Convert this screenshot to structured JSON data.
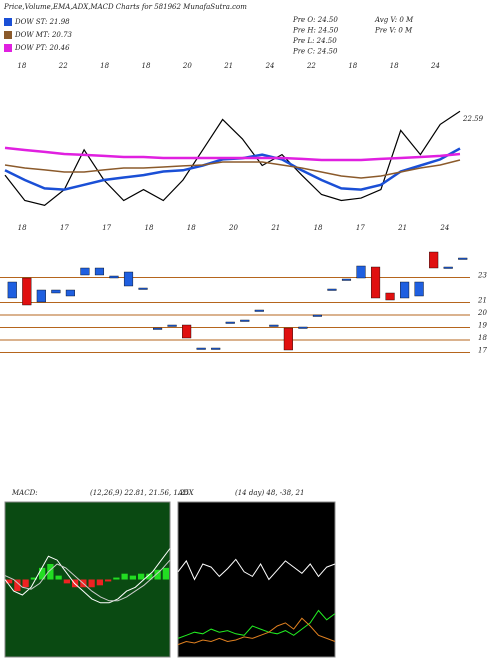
{
  "header": {
    "title": "Price,Volume,EMA,ADX,MACD Charts for 581962  MunafaSutra.com",
    "info": [
      "Pre  O: 24.50",
      "Pre  H: 24.50",
      "Pre  L: 24.50",
      "Pre  C: 24.50"
    ],
    "volume": [
      "Avg V: 0  M",
      "Pre  V: 0  M"
    ]
  },
  "chart_data": [
    {
      "type": "line",
      "ylim": [
        14,
        26
      ],
      "x_labels": [
        "18",
        "22",
        "18",
        "18",
        "20",
        "21",
        "24",
        "22",
        "18",
        "18",
        "24"
      ],
      "series": [
        {
          "color": "#000000",
          "width": 1.2,
          "values": [
            17.3,
            15.2,
            14.8,
            16.1,
            19.4,
            16.9,
            15.2,
            16.1,
            15.2,
            16.9,
            19.4,
            21.9,
            20.3,
            18.1,
            19.0,
            17.3,
            15.7,
            15.2,
            15.4,
            16.1,
            21.0,
            19.0,
            21.5,
            22.59
          ],
          "value_labels": [
            null,
            null,
            null,
            null,
            null,
            null,
            null,
            null,
            null,
            null,
            null,
            null,
            null,
            null,
            null,
            null,
            null,
            null,
            null,
            null,
            null,
            null,
            null,
            "22.59"
          ]
        },
        {
          "name": "DOW ST: 21.98",
          "color": "#1a4fd6",
          "width": 2.5,
          "values": [
            17.7,
            16.9,
            16.2,
            16.1,
            16.5,
            16.9,
            17.1,
            17.3,
            17.6,
            17.7,
            18.1,
            18.6,
            18.7,
            19.0,
            18.6,
            17.7,
            16.9,
            16.2,
            16.1,
            16.5,
            17.6,
            18.1,
            18.6,
            19.5
          ]
        },
        {
          "name": "DOW MT: 20.73",
          "color": "#8b5a2b",
          "width": 1.5,
          "values": [
            18.14,
            17.89,
            17.73,
            17.56,
            17.56,
            17.73,
            17.89,
            17.89,
            17.97,
            18.06,
            18.14,
            18.39,
            18.39,
            18.39,
            18.14,
            17.89,
            17.56,
            17.23,
            17.06,
            17.23,
            17.56,
            17.89,
            18.14,
            18.55
          ]
        },
        {
          "name": "DOW PT: 20.46",
          "color": "#e020e0",
          "width": 2.5,
          "values": [
            19.55,
            19.38,
            19.22,
            19.05,
            18.97,
            18.89,
            18.8,
            18.8,
            18.72,
            18.72,
            18.72,
            18.72,
            18.72,
            18.72,
            18.72,
            18.64,
            18.55,
            18.55,
            18.55,
            18.64,
            18.72,
            18.8,
            18.89,
            19.05
          ]
        }
      ]
    },
    {
      "type": "candlestick",
      "ylim": [
        16.4,
        25.6
      ],
      "yticks": [
        23,
        21,
        20,
        19,
        18,
        17
      ],
      "grid": true,
      "grid_color": "#b5651d",
      "up_color": "#1f5fe0",
      "down_color": "#e01010",
      "x_labels": [
        "18",
        "17",
        "17",
        "18",
        "18",
        "20",
        "21",
        "18",
        "17",
        "21",
        "24"
      ],
      "open": [
        21.36,
        22.96,
        21.04,
        21.76,
        21.52,
        23.2,
        23.2,
        22.96,
        22.32,
        22.16,
        18.96,
        19.2,
        19.2,
        17.36,
        17.36,
        19.44,
        19.6,
        20.4,
        19.2,
        18.96,
        19.04,
        20.0,
        22.08,
        22.88,
        22.96,
        23.84,
        21.76,
        21.36,
        21.52,
        25.04,
        23.84,
        24.56
      ],
      "close": [
        22.64,
        20.8,
        22.0,
        22.0,
        22.0,
        23.76,
        23.76,
        23.12,
        23.44,
        22.16,
        18.96,
        19.2,
        18.16,
        17.36,
        17.36,
        19.44,
        19.6,
        20.4,
        19.2,
        17.2,
        19.04,
        20.0,
        22.08,
        22.88,
        23.92,
        21.36,
        21.2,
        22.64,
        22.64,
        23.76,
        23.84,
        24.56
      ]
    },
    {
      "type": "macd",
      "title": "MACD:",
      "params": "(12,26,9) 22.81, 21.56, 1.25",
      "ylim": [
        -2,
        2
      ],
      "background": "#0a4a12",
      "pos_color": "#22dd22",
      "neg_color": "#ee2222",
      "series": [
        {
          "color": "#ffffff",
          "values": [
            0,
            -0.3,
            -0.4,
            -0.2,
            0.2,
            0.6,
            0.5,
            0.2,
            -0.1,
            -0.3,
            -0.5,
            -0.6,
            -0.6,
            -0.5,
            -0.3,
            -0.2,
            0,
            0.2,
            0.5,
            0.8
          ]
        },
        {
          "color": "#cccccc",
          "values": [
            0.1,
            0,
            -0.2,
            -0.25,
            -0.1,
            0.2,
            0.4,
            0.3,
            0.1,
            -0.1,
            -0.3,
            -0.45,
            -0.55,
            -0.55,
            -0.45,
            -0.3,
            -0.15,
            0.05,
            0.25,
            0.5
          ]
        }
      ],
      "histogram": [
        -0.1,
        -0.3,
        -0.2,
        0.05,
        0.3,
        0.4,
        0.1,
        -0.1,
        -0.2,
        -0.2,
        -0.2,
        -0.15,
        -0.05,
        0.05,
        0.15,
        0.1,
        0.15,
        0.15,
        0.25,
        0.3
      ]
    },
    {
      "type": "adx",
      "title": "ADX",
      "params": "(14 day) 48, -38, 21",
      "ylim": [
        0,
        100
      ],
      "background": "#000000",
      "series": [
        {
          "color": "#ffffff",
          "values": [
            55,
            62,
            50,
            60,
            58,
            52,
            57,
            63,
            55,
            52,
            60,
            50,
            56,
            62,
            58,
            54,
            60,
            52,
            58,
            60
          ]
        },
        {
          "color": "#22ee22",
          "values": [
            12,
            14,
            16,
            15,
            18,
            16,
            17,
            15,
            14,
            20,
            18,
            16,
            15,
            17,
            14,
            18,
            22,
            30,
            24,
            28
          ]
        },
        {
          "color": "#e08020",
          "values": [
            8,
            10,
            9,
            11,
            10,
            12,
            10,
            11,
            13,
            12,
            14,
            16,
            20,
            22,
            18,
            25,
            20,
            14,
            12,
            10
          ]
        }
      ]
    }
  ]
}
